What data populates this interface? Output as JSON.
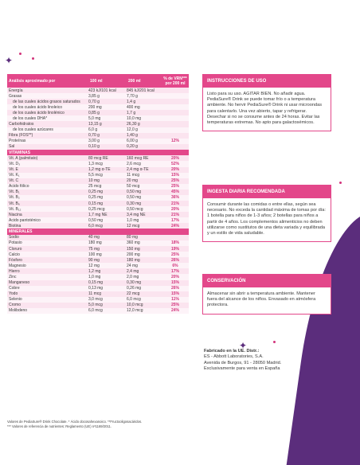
{
  "table": {
    "header": {
      "col1": "Análisis aproximado por",
      "col2": "100 ml",
      "col3": "200 ml",
      "col4a": "% de VRN***",
      "col4b": "por 200 ml"
    },
    "general": [
      {
        "label": "Energía",
        "v100": "423 kJ/101 kcal",
        "v200": "845 kJ/201 kcal",
        "pct": "",
        "indent": false
      },
      {
        "label": "Grasas",
        "v100": "3,85 g",
        "v200": "7,70 g",
        "pct": "",
        "indent": false
      },
      {
        "label": "de las cuales ácidos grasos saturados",
        "v100": "0,70 g",
        "v200": "1,4 g",
        "pct": "",
        "indent": true
      },
      {
        "label": "de los cuales ácido linoleico",
        "v100": "200 mg",
        "v200": "400 mg",
        "pct": "",
        "indent": true
      },
      {
        "label": "de los cuales ácido linolénico",
        "v100": "0,85 g",
        "v200": "1,7 g",
        "pct": "",
        "indent": true
      },
      {
        "label": "de los cuales DHA*",
        "v100": "5,0 mg",
        "v200": "10,0 mg",
        "pct": "",
        "indent": true
      },
      {
        "label": "Carbohidratos",
        "v100": "13,15 g",
        "v200": "26,30 g",
        "pct": "",
        "indent": false
      },
      {
        "label": "de los cuales azúcares",
        "v100": "6,0 g",
        "v200": "12,0 g",
        "pct": "",
        "indent": true
      },
      {
        "label": "Fibra (FOS**)",
        "v100": "0,70 g",
        "v200": "1,40 g",
        "pct": "",
        "indent": false
      },
      {
        "label": "Proteínas",
        "v100": "3,00 g",
        "v200": "6,00 g",
        "pct": "12%",
        "indent": false
      },
      {
        "label": "Sal",
        "v100": "0,10 g",
        "v200": "0,20 g",
        "pct": "",
        "indent": false
      }
    ],
    "vitamins_title": "VITAMINAS",
    "vitamins": [
      {
        "label": "Vit. A (palmitato)",
        "v100": "80 mcg RE",
        "v200": "160 mcg RE",
        "pct": "20%"
      },
      {
        "label": "Vit. D₃",
        "v100": "1,3 mcg",
        "v200": "2,6 mcg",
        "pct": "52%"
      },
      {
        "label": "Vit. E",
        "v100": "1,2 mg α-TE",
        "v200": "2,4 mg α-TE",
        "pct": "20%"
      },
      {
        "label": "Vit. K₁",
        "v100": "5,5 mcg",
        "v200": "11 mcg",
        "pct": "15%"
      },
      {
        "label": "Vit. C",
        "v100": "10 mg",
        "v200": "20 mg",
        "pct": "25%"
      },
      {
        "label": "Ácido fólico",
        "v100": "25 mcg",
        "v200": "50 mcg",
        "pct": "25%"
      },
      {
        "label": "Vit. B₁",
        "v100": "0,25 mg",
        "v200": "0,50 mg",
        "pct": "45%"
      },
      {
        "label": "Vit. B₂",
        "v100": "0,25 mg",
        "v200": "0,50 mg",
        "pct": "36%"
      },
      {
        "label": "Vit. B₆",
        "v100": "0,15 mg",
        "v200": "0,30 mg",
        "pct": "21%"
      },
      {
        "label": "Vit. B₁₂",
        "v100": "0,25 mcg",
        "v200": "0,50 mcg",
        "pct": "20%"
      },
      {
        "label": "Niacina",
        "v100": "1,7 mg NE",
        "v200": "3,4 mg NE",
        "pct": "21%"
      },
      {
        "label": "Ácido pantoténico",
        "v100": "0,50 mg",
        "v200": "1,0 mg",
        "pct": "17%"
      },
      {
        "label": "Biotina",
        "v100": "6,0 mcg",
        "v200": "12 mcg",
        "pct": "24%"
      }
    ],
    "minerals_title": "MINERALES",
    "minerals": [
      {
        "label": "Sodio",
        "v100": "40 mg",
        "v200": "80 mg",
        "pct": ""
      },
      {
        "label": "Potasio",
        "v100": "180 mg",
        "v200": "360 mg",
        "pct": "18%"
      },
      {
        "label": "Cloruro",
        "v100": "75 mg",
        "v200": "150 mg",
        "pct": "19%"
      },
      {
        "label": "Calcio",
        "v100": "100 mg",
        "v200": "200 mg",
        "pct": "25%"
      },
      {
        "label": "Fósforo",
        "v100": "90 mg",
        "v200": "180 mg",
        "pct": "26%"
      },
      {
        "label": "Magnesio",
        "v100": "12 mg",
        "v200": "24 mg",
        "pct": "6%"
      },
      {
        "label": "Hierro",
        "v100": "1,2 mg",
        "v200": "2,4 mg",
        "pct": "17%"
      },
      {
        "label": "Zinc",
        "v100": "1,0 mg",
        "v200": "2,0 mg",
        "pct": "20%"
      },
      {
        "label": "Manganeso",
        "v100": "0,15 mg",
        "v200": "0,30 mg",
        "pct": "15%"
      },
      {
        "label": "Cobre",
        "v100": "0,13 mg",
        "v200": "0,26 mg",
        "pct": "26%"
      },
      {
        "label": "Yodo",
        "v100": "11 mcg",
        "v200": "22 mcg",
        "pct": "15%"
      },
      {
        "label": "Selenio",
        "v100": "3,0 mcg",
        "v200": "6,0 mcg",
        "pct": "11%"
      },
      {
        "label": "Cromo",
        "v100": "5,0 mcg",
        "v200": "10,0 mcg",
        "pct": "25%"
      },
      {
        "label": "Molibdeno",
        "v100": "6,0 mcg",
        "v200": "12,0 mcg",
        "pct": "24%"
      }
    ]
  },
  "footnotes": {
    "line1": "Valores de PediaSure® Drink Chocolate. * Ácido docosahexanoico. **Fructooligosacáridos.",
    "line2": "*** Valores de referencia de nutrientes: Reglamento (UE) nº1169/2011."
  },
  "instructions": {
    "title": "INSTRUCCIONES DE USO",
    "body": "Listo para su uso. AGITAR BIEN. No añadir agua. PediaSure® Drink se puede tomar frío o a temperatura ambiente. No hervir PediaSure® Drink ni usar microondas para calentarlo. Una vez abierto, tapar y refrigerar. Desechar si no se consume antes de 24 horas. Evitar las temperaturas extremas. No apto para galactosémicos."
  },
  "daily_intake": {
    "title": "INGESTA DIARIA RECOMENDADA",
    "body": "Consumir durante las comidas o entre ellas, según sea necesario. No exceda la cantidad máxima de tomas por día: 1 botella para niños de 1-3 años; 2 botellas para niños a partir de 4 años. Los complementos alimenticios no deben utilizarse como sustitutos de una dieta variada y equilibrada y un estilo de vida saludable."
  },
  "conservation": {
    "title": "CONSERVACIÓN",
    "body": "Almacenar sin abrir a temperatura ambiente. Mantener fuera del alcance de los niños. Envasado en atmósfera protectora."
  },
  "manufacturer": {
    "heading": "Fabricado en la UE. Distr.:",
    "line1": "ES - Abbott Laboratories, S.A.",
    "line2": "Avenida de Burgos, 91 - 28050 Madrid.",
    "line3": "Exclusivamente para venta en España"
  }
}
